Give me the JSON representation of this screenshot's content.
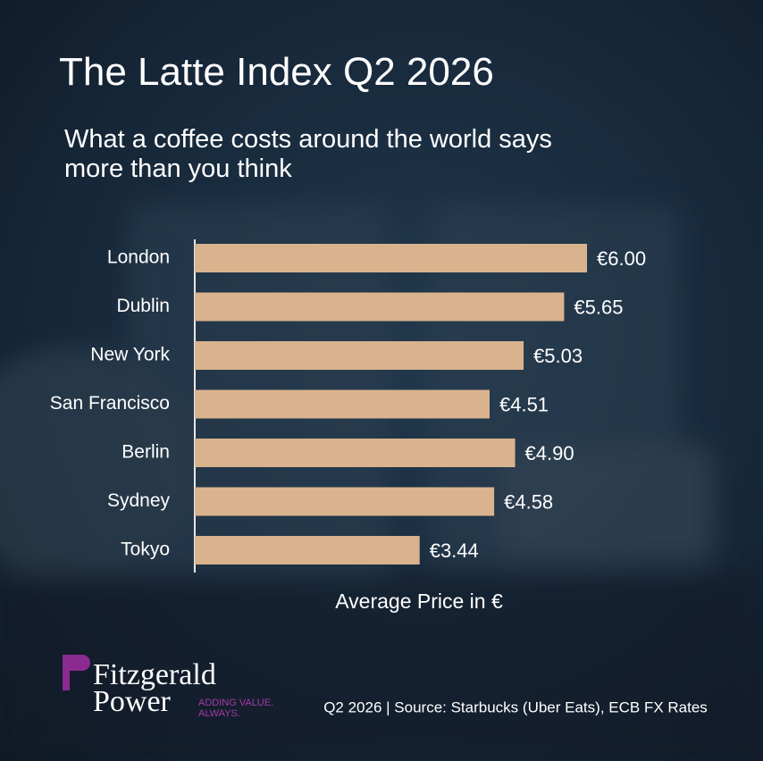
{
  "chart_data": {
    "type": "hbar",
    "title": "The Latte Index Q2 2026",
    "subtitle": "What a coffee costs around the world says more than you think",
    "categories": [
      "London",
      "Dublin",
      "New York",
      "San Francisco",
      "Berlin",
      "Sydney",
      "Tokyo"
    ],
    "values": [
      6.0,
      5.65,
      5.03,
      4.51,
      4.9,
      4.58,
      3.44
    ],
    "value_labels": [
      "€6.00",
      "€5.65",
      "€5.03",
      "€4.51",
      "€4.90",
      "€4.58",
      "€3.44"
    ],
    "color": "#d9b38e",
    "xlim": [
      0,
      8
    ],
    "xlabel": "Average Price in €",
    "source": "Q2 2026 | Source: Starbucks (Uber Eats), ECB FX Rates"
  },
  "brand": {
    "name_line1": "Fitzgerald",
    "name_line2": "Power",
    "tagline_line1": "ADDING VALUE.",
    "tagline_line2": "ALWAYS."
  }
}
